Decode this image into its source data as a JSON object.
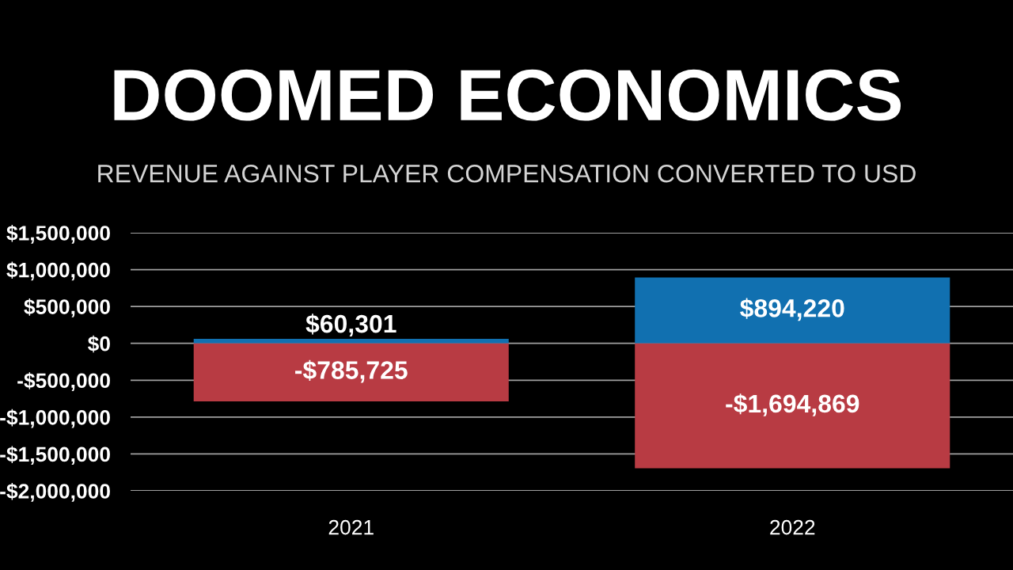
{
  "chart_data": {
    "type": "bar",
    "title": "DOOMED ECONOMICS",
    "subtitle": "REVENUE AGAINST PLAYER COMPENSATION CONVERTED TO USD",
    "categories": [
      "2021",
      "2022"
    ],
    "stacked": true,
    "series": [
      {
        "color": "#1170b0",
        "values": [
          60301,
          894220
        ],
        "value_labels": [
          "$60,301",
          "$894,220"
        ]
      },
      {
        "color": "#b83b43",
        "values": [
          -785725,
          -1694869
        ],
        "value_labels": [
          "-$785,725",
          "-$1,694,869"
        ]
      }
    ],
    "ylim": [
      -2000000,
      1500000
    ],
    "yticks": [
      {
        "value": 1500000,
        "label": "$1,500,000"
      },
      {
        "value": 1000000,
        "label": "$1,000,000"
      },
      {
        "value": 500000,
        "label": "$500,000"
      },
      {
        "value": 0,
        "label": "$0"
      },
      {
        "value": -500000,
        "label": "-$500,000"
      },
      {
        "value": -1000000,
        "label": "-$1,000,000"
      },
      {
        "value": -1500000,
        "label": "-$1,500,000"
      },
      {
        "value": -2000000,
        "label": "-$2,000,000"
      }
    ],
    "grid": "y"
  }
}
